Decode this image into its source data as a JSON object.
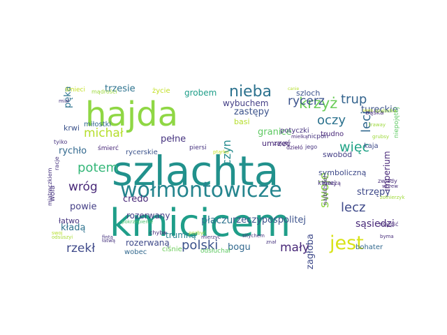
{
  "wordcloud": {
    "words": [
      {
        "text": "szlachta",
        "color": "#21918c"
      },
      {
        "text": "kmicicem",
        "color": "#1f9e89"
      },
      {
        "text": "hajda",
        "color": "#8fd744"
      },
      {
        "text": "wołmontowicze",
        "color": "#25858e"
      },
      {
        "text": "jest",
        "color": "#d8e219"
      },
      {
        "text": "nieba",
        "color": "#2c728e"
      },
      {
        "text": "krzyż",
        "color": "#6ccd5a"
      },
      {
        "text": "trup",
        "color": "#33638d"
      },
      {
        "text": "rycerz",
        "color": "#3b528b"
      },
      {
        "text": "oczy",
        "color": "#2c728e"
      },
      {
        "text": "leci",
        "color": "#31688e"
      },
      {
        "text": "więc",
        "color": "#20a386"
      },
      {
        "text": "lecz",
        "color": "#3e4989"
      },
      {
        "text": "swoje",
        "color": "#8fd744"
      },
      {
        "text": "czyn",
        "color": "#238a8d"
      },
      {
        "text": "michał",
        "color": "#b5de2b"
      },
      {
        "text": "potem",
        "color": "#35b779"
      },
      {
        "text": "wróg",
        "color": "#482878"
      },
      {
        "text": "polski",
        "color": "#3b528b"
      },
      {
        "text": "mały",
        "color": "#482878"
      },
      {
        "text": "rzekł",
        "color": "#3e4989"
      },
      {
        "text": "tureckie",
        "color": "#3b528b"
      },
      {
        "text": "szloch",
        "color": "#3b528b"
      },
      {
        "text": "zastępy",
        "color": "#3b528b"
      },
      {
        "text": "wybuchem",
        "color": "#433e85"
      },
      {
        "text": "trzesie",
        "color": "#2c728e"
      },
      {
        "text": "grobem",
        "color": "#1f9e89"
      },
      {
        "text": "pełne",
        "color": "#46337f"
      },
      {
        "text": "pęka",
        "color": "#2c728e"
      },
      {
        "text": "krwi",
        "color": "#3b528b"
      },
      {
        "text": "miłostki",
        "color": "#31688e"
      },
      {
        "text": "rychło",
        "color": "#31688e"
      },
      {
        "text": "credo",
        "color": "#482878"
      },
      {
        "text": "płaczu",
        "color": "#2c728e"
      },
      {
        "text": "rzeczypospolitej",
        "color": "#3b528b"
      },
      {
        "text": "imperium",
        "color": "#482878"
      },
      {
        "text": "sąsiedzi",
        "color": "#482878"
      },
      {
        "text": "strzępy",
        "color": "#3e4989"
      },
      {
        "text": "zagłoba",
        "color": "#3e4989"
      },
      {
        "text": "bogu",
        "color": "#31688e"
      },
      {
        "text": "powie",
        "color": "#433e85"
      },
      {
        "text": "kładą",
        "color": "#2c728e"
      },
      {
        "text": "rozerwaną",
        "color": "#3e4989"
      },
      {
        "text": "rozerwany",
        "color": "#433e85"
      },
      {
        "text": "trumną",
        "color": "#26828e"
      },
      {
        "text": "swobód",
        "color": "#433e85"
      },
      {
        "text": "granice",
        "color": "#5ec962"
      },
      {
        "text": "umrzeć",
        "color": "#482878"
      },
      {
        "text": "basi",
        "color": "#b5de2b"
      },
      {
        "text": "potyczki",
        "color": "#46337f"
      },
      {
        "text": "trudno",
        "color": "#482878"
      },
      {
        "text": "symboliczną",
        "color": "#3e4989"
      },
      {
        "text": "kaja",
        "color": "#3e4989"
      },
      {
        "text": "bohater",
        "color": "#31688e"
      },
      {
        "text": "wobec",
        "color": "#31688e"
      },
      {
        "text": "ciśnie",
        "color": "#6ccd5a"
      },
      {
        "text": "odsłuchał",
        "color": "#5ec962"
      },
      {
        "text": "rycerskie",
        "color": "#3b528b"
      },
      {
        "text": "śmierć",
        "color": "#482878"
      },
      {
        "text": "piersi",
        "color": "#46337f"
      },
      {
        "text": "zajęty",
        "color": "#472c7a"
      },
      {
        "text": "dziełó",
        "color": "#482878"
      },
      {
        "text": "jego",
        "color": "#46337f"
      },
      {
        "text": "nicpoń",
        "color": "#46337f"
      },
      {
        "text": "bąśka",
        "color": "#472c7a"
      },
      {
        "text": "niepojętej",
        "color": "#5ec962"
      },
      {
        "text": "życie",
        "color": "#c2df23"
      },
      {
        "text": "śmieci",
        "color": "#c2df23"
      },
      {
        "text": "mądrości",
        "color": "#9dd93b"
      },
      {
        "text": "łatwo",
        "color": "#46337f"
      },
      {
        "text": "wola",
        "color": "#46337f"
      },
      {
        "text": "racje",
        "color": "#46337f"
      },
      {
        "text": "tyiko",
        "color": "#46337f"
      },
      {
        "text": "miał",
        "color": "#46337f"
      },
      {
        "text": "chyba",
        "color": "#472c7a"
      },
      {
        "text": "pozbyć",
        "color": "#a2da37"
      },
      {
        "text": "pokrzepienie",
        "color": "#4ac16d"
      },
      {
        "text": "miatraczkiem",
        "color": "#46337f"
      },
      {
        "text": "łatwą",
        "color": "#46337f"
      },
      {
        "text": "fintą",
        "color": "#46337f"
      },
      {
        "text": "odsuszyi",
        "color": "#a8db34"
      },
      {
        "text": "swoj",
        "color": "#b5de2b"
      },
      {
        "text": "sitychem",
        "color": "#46337f"
      },
      {
        "text": "znał",
        "color": "#46337f"
      },
      {
        "text": "mierzyć",
        "color": "#46337f"
      },
      {
        "text": "rzeczą",
        "color": "#472c7a"
      },
      {
        "text": "najbliższej",
        "color": "#46337f"
      },
      {
        "text": "której",
        "color": "#46337f"
      },
      {
        "text": "zwiady",
        "color": "#472c7a"
      },
      {
        "text": "wbrew",
        "color": "#472c7a"
      },
      {
        "text": "żołnierzyk",
        "color": "#9fda3a"
      },
      {
        "text": "mątpić",
        "color": "#472c7a"
      },
      {
        "text": "byma",
        "color": "#472c7a"
      },
      {
        "text": "szabołka",
        "color": "#9dd93b"
      },
      {
        "text": "mielką",
        "color": "#472c7a"
      },
      {
        "text": "grubsy",
        "color": "#9dd93b"
      },
      {
        "text": "traway",
        "color": "#9dd93b"
      },
      {
        "text": "sews",
        "color": "#c2df23"
      },
      {
        "text": "canie",
        "color": "#b5de2b"
      },
      {
        "text": "ptąrku",
        "color": "#c2df23"
      }
    ]
  }
}
